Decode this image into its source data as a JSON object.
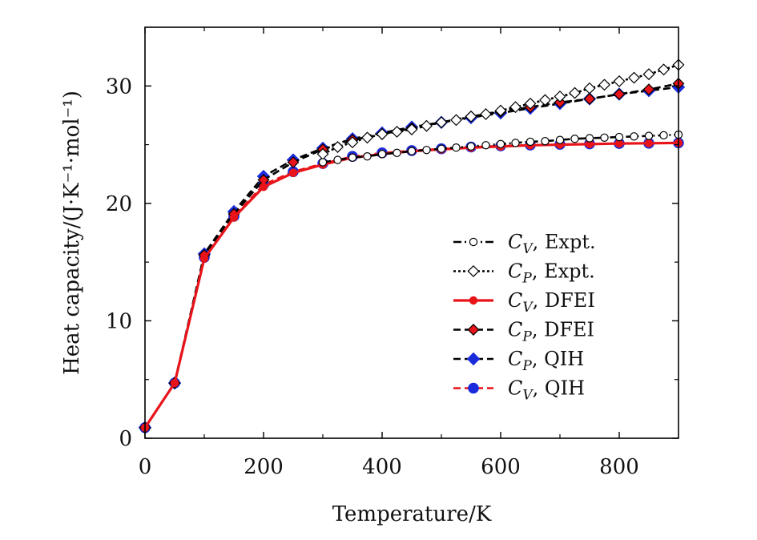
{
  "chart_data": {
    "type": "line",
    "title": "",
    "xlabel": "Temperature/K",
    "ylabel": "Heat capacity/(J·K⁻¹·mol⁻¹)",
    "xlim": [
      0,
      900
    ],
    "ylim": [
      0,
      35
    ],
    "xticks": [
      0,
      200,
      400,
      600,
      800
    ],
    "yticks": [
      0,
      10,
      20,
      30
    ],
    "grid": false,
    "legend_position": "lower-right",
    "series": [
      {
        "name": "C_V, Expt.",
        "legend_symbol": "C",
        "legend_sub": "V",
        "legend_suffix": ", Expt.",
        "color": "#000000",
        "dash": "dashdot",
        "marker": "circle-open",
        "x": [
          300,
          325,
          350,
          375,
          400,
          425,
          450,
          475,
          500,
          525,
          550,
          575,
          600,
          625,
          650,
          675,
          700,
          725,
          750,
          775,
          800,
          825,
          850,
          875,
          900
        ],
        "values": [
          23.5,
          23.7,
          23.9,
          24.0,
          24.2,
          24.3,
          24.45,
          24.55,
          24.65,
          24.75,
          24.85,
          24.95,
          25.05,
          25.15,
          25.25,
          25.3,
          25.4,
          25.5,
          25.55,
          25.6,
          25.65,
          25.7,
          25.75,
          25.8,
          25.85
        ]
      },
      {
        "name": "C_P, Expt.",
        "legend_symbol": "C",
        "legend_sub": "P",
        "legend_suffix": ", Expt.",
        "color": "#000000",
        "dash": "dotted",
        "marker": "diamond-open",
        "x": [
          300,
          325,
          350,
          375,
          400,
          425,
          450,
          475,
          500,
          525,
          550,
          575,
          600,
          625,
          650,
          675,
          700,
          725,
          750,
          775,
          800,
          825,
          850,
          875,
          900
        ],
        "values": [
          24.2,
          24.8,
          25.2,
          25.6,
          25.9,
          26.1,
          26.3,
          26.6,
          26.9,
          27.1,
          27.4,
          27.6,
          27.9,
          28.2,
          28.5,
          28.8,
          29.1,
          29.4,
          29.8,
          30.1,
          30.4,
          30.7,
          31.0,
          31.4,
          31.8
        ]
      },
      {
        "name": "C_V, DFEI",
        "legend_symbol": "C",
        "legend_sub": "V",
        "legend_suffix": ", DFEI",
        "color": "#e8141a",
        "dash": "solid",
        "marker": "circle-red",
        "x": [
          0,
          50,
          100,
          150,
          200,
          250,
          300,
          350,
          400,
          450,
          500,
          550,
          600,
          650,
          700,
          750,
          800,
          850,
          900
        ],
        "values": [
          0.9,
          4.7,
          15.3,
          18.8,
          21.4,
          22.6,
          23.3,
          23.9,
          24.2,
          24.45,
          24.6,
          24.75,
          24.85,
          24.95,
          25.0,
          25.05,
          25.1,
          25.12,
          25.15
        ]
      },
      {
        "name": "C_P, DFEI",
        "legend_symbol": "C",
        "legend_sub": "P",
        "legend_suffix": ", DFEI",
        "color": "#000000",
        "dash": "dashed",
        "marker": "diamond-red",
        "x": [
          0,
          50,
          100,
          150,
          200,
          250,
          300,
          350,
          400,
          450,
          500,
          550,
          600,
          650,
          700,
          750,
          800,
          850,
          900
        ],
        "values": [
          0.9,
          4.7,
          15.6,
          19.1,
          22.0,
          23.5,
          24.6,
          25.4,
          25.9,
          26.4,
          26.9,
          27.4,
          27.8,
          28.2,
          28.6,
          28.9,
          29.3,
          29.7,
          30.2
        ]
      },
      {
        "name": "C_P, QIH",
        "legend_symbol": "C",
        "legend_sub": "P",
        "legend_suffix": ", QIH",
        "color": "#000000",
        "dash": "dashed",
        "marker": "diamond-blue",
        "x": [
          0,
          50,
          100,
          150,
          200,
          250,
          300,
          350,
          400,
          450,
          500,
          550,
          600,
          650,
          700,
          750,
          800,
          850,
          900
        ],
        "values": [
          0.9,
          4.7,
          15.7,
          19.3,
          22.3,
          23.7,
          24.7,
          25.5,
          26.0,
          26.5,
          26.9,
          27.3,
          27.7,
          28.1,
          28.5,
          28.9,
          29.3,
          29.6,
          29.9
        ]
      },
      {
        "name": "C_V, QIH",
        "legend_symbol": "C",
        "legend_sub": "V",
        "legend_suffix": ", QIH",
        "color": "#e8141a",
        "dash": "dashed",
        "marker": "circle-blue",
        "x": [
          0,
          50,
          100,
          150,
          200,
          250,
          300,
          350,
          400,
          450,
          500,
          550,
          600,
          650,
          700,
          750,
          800,
          850,
          900
        ],
        "values": [
          0.9,
          4.7,
          15.4,
          18.9,
          21.6,
          22.7,
          23.4,
          24.0,
          24.3,
          24.5,
          24.65,
          24.8,
          24.9,
          24.97,
          25.03,
          25.07,
          25.1,
          25.12,
          25.15
        ]
      }
    ]
  }
}
